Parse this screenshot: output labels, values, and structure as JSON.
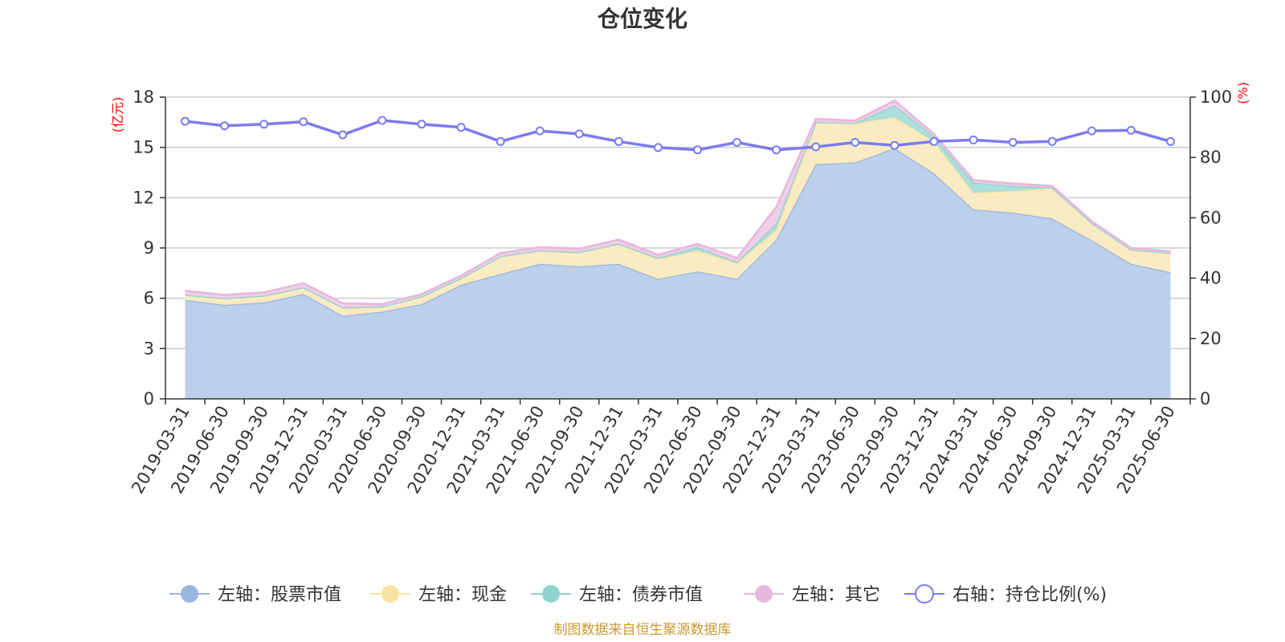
{
  "chart_data": {
    "type": "area",
    "title": "仓位变化",
    "source": "制图数据来自恒生聚源数据库",
    "y_left": {
      "unit_label": "(亿元)",
      "range": [
        0,
        18
      ],
      "ticks": [
        "0",
        "3",
        "6",
        "9",
        "12",
        "15",
        "18"
      ]
    },
    "y_right": {
      "unit_label": "(%)",
      "range": [
        0,
        100
      ],
      "ticks": [
        "0",
        "20",
        "40",
        "60",
        "80",
        "100"
      ]
    },
    "grid": true,
    "legend_position": "bottom",
    "categories": [
      "2019-03-31",
      "2019-06-30",
      "2019-09-30",
      "2019-12-31",
      "2020-03-31",
      "2020-06-30",
      "2020-09-30",
      "2020-12-31",
      "2021-03-31",
      "2021-06-30",
      "2021-09-30",
      "2021-12-31",
      "2022-03-31",
      "2022-06-30",
      "2022-09-30",
      "2022-12-31",
      "2023-03-31",
      "2023-06-30",
      "2023-09-30",
      "2023-12-31",
      "2024-03-31",
      "2024-06-30",
      "2024-09-30",
      "2024-12-31",
      "2025-03-31",
      "2025-06-30"
    ],
    "series": [
      {
        "name": "左轴：股票市值",
        "axis": "left",
        "color": "#9ab6e0",
        "fill": "#b8cdea",
        "values": [
          5.9,
          5.6,
          5.75,
          6.25,
          4.95,
          5.2,
          5.65,
          6.8,
          7.45,
          8.05,
          7.9,
          8.05,
          7.15,
          7.6,
          7.15,
          9.5,
          14.0,
          14.1,
          14.95,
          13.45,
          11.3,
          11.1,
          10.75,
          9.45,
          8.05,
          7.55
        ]
      },
      {
        "name": "左轴：现金",
        "axis": "left",
        "color": "#f7e4a2",
        "fill": "#faeabf",
        "values": [
          0.3,
          0.4,
          0.4,
          0.4,
          0.5,
          0.3,
          0.45,
          0.4,
          1.05,
          0.8,
          0.85,
          1.2,
          1.2,
          1.25,
          0.95,
          0.6,
          2.5,
          2.35,
          1.85,
          1.9,
          1.0,
          1.3,
          1.85,
          1.05,
          0.85,
          1.15
        ]
      },
      {
        "name": "左轴：债券市值",
        "axis": "left",
        "color": "#8fd3d1",
        "fill": "#a8dcd8",
        "values": [
          0,
          0,
          0,
          0,
          0,
          0,
          0,
          0,
          0,
          0,
          0,
          0,
          0.05,
          0.2,
          0.05,
          0.35,
          0,
          0,
          0.7,
          0.3,
          0.6,
          0.3,
          0,
          0,
          0,
          0
        ]
      },
      {
        "name": "左轴：其它",
        "axis": "left",
        "color": "#e6b7dc",
        "fill": "#eecce6",
        "values": [
          0.25,
          0.2,
          0.2,
          0.25,
          0.25,
          0.15,
          0.15,
          0.15,
          0.2,
          0.2,
          0.2,
          0.25,
          0.2,
          0.2,
          0.25,
          1.0,
          0.2,
          0.15,
          0.3,
          0.15,
          0.15,
          0.15,
          0.1,
          0.1,
          0.1,
          0.1
        ]
      },
      {
        "name": "右轴：持仓比例(%)",
        "axis": "right",
        "type": "line",
        "color": "#7b7bf0",
        "values": [
          92.0,
          90.5,
          91.0,
          91.8,
          87.5,
          92.3,
          91.0,
          90.0,
          85.3,
          88.8,
          87.8,
          85.3,
          83.3,
          82.5,
          85.0,
          82.5,
          83.5,
          85.0,
          84.0,
          85.3,
          85.8,
          85.0,
          85.3,
          88.8,
          89.0,
          85.3
        ]
      }
    ]
  }
}
